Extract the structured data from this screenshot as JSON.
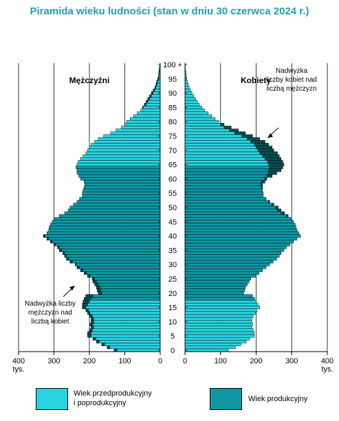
{
  "title": "Piramida wieku ludności (stan w dniu 30 czerwca 2024 r.)",
  "chart_data": {
    "type": "bar",
    "orientation": "horizontal-pyramid",
    "unit": "tys.",
    "age_axis_labels": [
      "0",
      "5",
      "10",
      "15",
      "20",
      "25",
      "30",
      "35",
      "40",
      "45",
      "50",
      "55",
      "60",
      "65",
      "70",
      "75",
      "80",
      "85",
      "90",
      "95",
      "100 +"
    ],
    "x_ticks_left": [
      "400",
      "300",
      "200",
      "100",
      "0"
    ],
    "x_ticks_right": [
      "0",
      "100",
      "200",
      "300",
      "400"
    ],
    "xlim": [
      0,
      400
    ],
    "ages": [
      0,
      1,
      2,
      3,
      4,
      5,
      6,
      7,
      8,
      9,
      10,
      11,
      12,
      13,
      14,
      15,
      16,
      17,
      18,
      19,
      20,
      21,
      22,
      23,
      24,
      25,
      26,
      27,
      28,
      29,
      30,
      31,
      32,
      33,
      34,
      35,
      36,
      37,
      38,
      39,
      40,
      41,
      42,
      43,
      44,
      45,
      46,
      47,
      48,
      49,
      50,
      51,
      52,
      53,
      54,
      55,
      56,
      57,
      58,
      59,
      60,
      61,
      62,
      63,
      64,
      65,
      66,
      67,
      68,
      69,
      70,
      71,
      72,
      73,
      74,
      75,
      76,
      77,
      78,
      79,
      80,
      81,
      82,
      83,
      84,
      85,
      86,
      87,
      88,
      89,
      90,
      91,
      92,
      93,
      94,
      95,
      96,
      97,
      98,
      99,
      100
    ],
    "panels": {
      "men": "Mężczyźni",
      "women": "Kobiety"
    },
    "series": [
      {
        "name": "Mężczyźni",
        "values": [
          130,
          150,
          165,
          180,
          190,
          205,
          205,
          200,
          195,
          198,
          195,
          195,
          200,
          205,
          210,
          220,
          220,
          218,
          215,
          210,
          175,
          178,
          180,
          185,
          190,
          192,
          205,
          215,
          225,
          235,
          240,
          255,
          265,
          270,
          275,
          285,
          290,
          300,
          310,
          320,
          330,
          320,
          315,
          313,
          310,
          305,
          298,
          285,
          270,
          260,
          255,
          245,
          235,
          228,
          220,
          220,
          218,
          215,
          213,
          215,
          225,
          230,
          235,
          235,
          238,
          235,
          232,
          225,
          218,
          210,
          205,
          200,
          195,
          185,
          175,
          160,
          140,
          125,
          110,
          100,
          95,
          85,
          75,
          65,
          55,
          50,
          45,
          40,
          35,
          30,
          25,
          20,
          15,
          12,
          10,
          7,
          5,
          4,
          3,
          2,
          1
        ]
      },
      {
        "name": "Kobiety",
        "values": [
          122,
          142,
          157,
          172,
          182,
          195,
          195,
          192,
          188,
          190,
          188,
          188,
          192,
          198,
          202,
          210,
          205,
          200,
          196,
          190,
          165,
          168,
          170,
          175,
          180,
          185,
          198,
          208,
          218,
          228,
          238,
          248,
          258,
          265,
          270,
          278,
          285,
          295,
          305,
          315,
          325,
          320,
          315,
          312,
          310,
          305,
          298,
          290,
          280,
          270,
          262,
          250,
          238,
          228,
          220,
          220,
          218,
          218,
          218,
          225,
          230,
          245,
          258,
          270,
          275,
          278,
          275,
          270,
          265,
          260,
          250,
          245,
          235,
          225,
          210,
          190,
          170,
          150,
          130,
          110,
          95,
          85,
          75,
          65,
          55,
          48,
          40,
          35,
          30,
          25,
          20,
          16,
          12,
          9,
          7,
          5,
          4,
          3,
          2,
          1,
          1
        ]
      }
    ],
    "annotations": {
      "women_excess": [
        "Nadwyżka",
        "liczby kobiet nad",
        "liczbą mężczyzn"
      ],
      "men_excess": [
        "Nadwyżka liczby",
        "mężczyzn nad",
        "liczbą kobiet"
      ]
    },
    "working_age_range": [
      18,
      64
    ],
    "colors": {
      "light": "#2ad1de",
      "dark": "#0e97a3",
      "excess": "#0a4c52",
      "title": "#1aa3ad"
    }
  },
  "legend": [
    {
      "label_lines": [
        "Wiek przedprodukcyjny",
        "i poprodukcyjny"
      ],
      "color": "#2ad1de"
    },
    {
      "label_lines": [
        "Wiek produkcyjny"
      ],
      "color": "#0e97a3"
    }
  ]
}
